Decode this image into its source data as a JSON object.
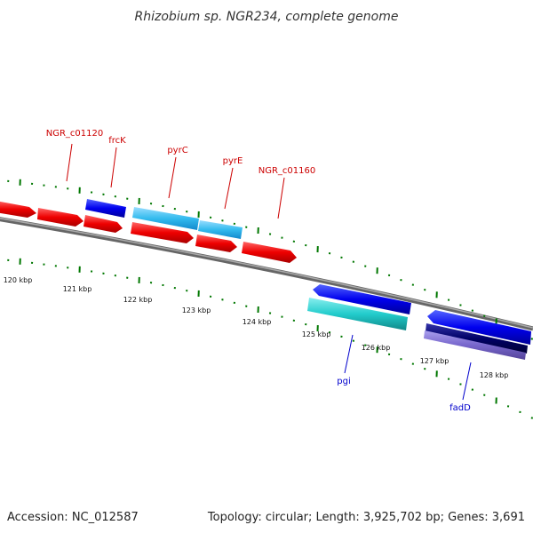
{
  "title": "Rhizobium sp. NGR234, complete genome",
  "footer": {
    "accession": "Accession: NC_012587",
    "stats": "Topology: circular; Length: 3,925,702 bp; Genes: 3,691"
  },
  "gene_labels": {
    "ngr_c01120": "NGR_c01120",
    "frck": "frcK",
    "pyrc": "pyrC",
    "pyre": "pyrE",
    "ngr_c01160": "NGR_c01160",
    "pgi": "pgi",
    "fadd": "fadD"
  },
  "kbp_ticks": [
    "120 kbp",
    "121 kbp",
    "122 kbp",
    "123 kbp",
    "124 kbp",
    "125 kbp",
    "126 kbp",
    "127 kbp",
    "128 kbp"
  ],
  "colors": {
    "forward_gene": "#ff0000",
    "forward_alt": "#0000dd",
    "cyan_gene": "#33bbee",
    "reverse_cyan": "#22cccc",
    "reverse_blue": "#0000ee",
    "navy": "#000066",
    "lavender": "#7766cc",
    "backbone": "#808080",
    "tick_green": "#007700"
  }
}
